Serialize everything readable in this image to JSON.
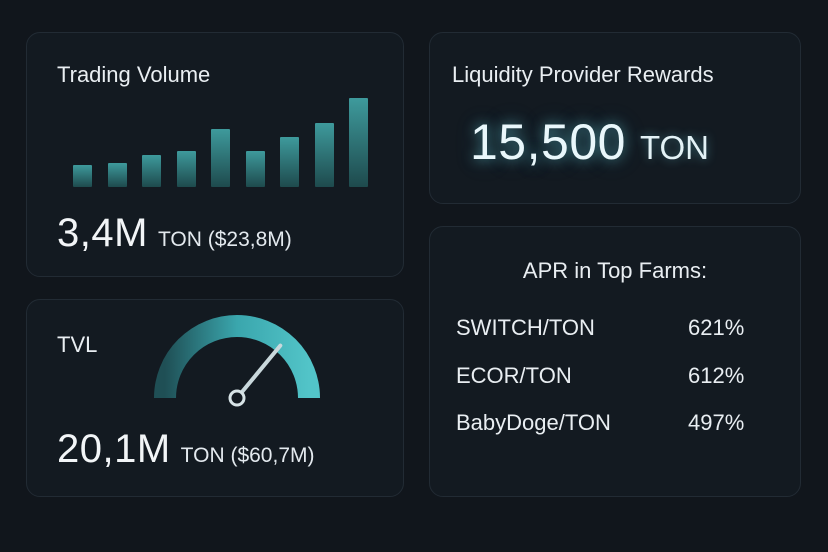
{
  "trading_volume": {
    "title": "Trading Volume",
    "value": "3,4M",
    "unit": "TON ($23,8M)",
    "bar_levels": [
      0.24,
      0.26,
      0.35,
      0.39,
      0.63,
      0.39,
      0.54,
      0.7,
      0.97
    ]
  },
  "tvl": {
    "title": "TVL",
    "value": "20,1M",
    "unit": "TON ($60,7M)",
    "gauge_level": 0.72
  },
  "rewards": {
    "title": "Liquidity Provider Rewards",
    "value": "15,500",
    "unit": "TON"
  },
  "apr": {
    "title": "APR in Top Farms:",
    "farms": [
      {
        "pair": "SWITCH/TON",
        "apr": "621%"
      },
      {
        "pair": "ECOR/TON",
        "apr": "612%"
      },
      {
        "pair": "BabyDoge/TON",
        "apr": "497%"
      }
    ]
  },
  "colors": {
    "background": "#11161c",
    "card": "#131a21",
    "accent_teal": "#3bb2b8",
    "bar_dark": "#1e4a4d",
    "bar_light": "#3e9a9c"
  }
}
